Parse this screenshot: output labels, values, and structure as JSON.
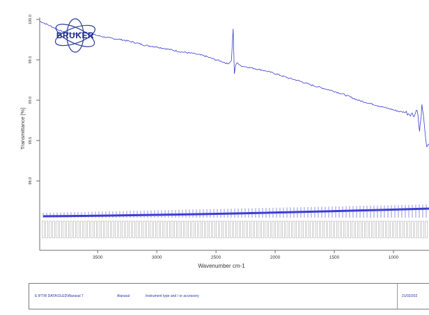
{
  "chart_data": {
    "type": "line",
    "title": "",
    "xlabel": "Wavenumber cm-1",
    "ylabel": "Transmittance [%]",
    "x_axis_reversed": true,
    "xlim": [
      3990,
      700
    ],
    "ylim": [
      97.7,
      100.0
    ],
    "x_ticks": [
      3500,
      3000,
      2500,
      2000,
      1500,
      1000
    ],
    "y_ticks": [
      100.0,
      99.5,
      99.0,
      98.5,
      98.0
    ],
    "y_tick_labels": [
      "100.0",
      "99.5",
      "99.0",
      "98.5",
      "98.0"
    ],
    "grid": false,
    "color": "#3b3bd4",
    "series": [
      {
        "x": [
          3990,
          3900,
          3800,
          3700,
          3600,
          3500,
          3400,
          3300,
          3200,
          3100,
          3000,
          2900,
          2800,
          2700,
          2600,
          2500,
          2450,
          2400,
          2370,
          2355,
          2345,
          2335,
          2320,
          2300,
          2200,
          2100,
          2000,
          1900,
          1800,
          1700,
          1600,
          1500,
          1400,
          1300,
          1200,
          1100,
          1000,
          950,
          900,
          850,
          820,
          800,
          780,
          760,
          740,
          720,
          700
        ],
        "y": [
          99.98,
          99.92,
          99.85,
          99.82,
          99.84,
          99.8,
          99.77,
          99.75,
          99.72,
          99.68,
          99.66,
          99.63,
          99.6,
          99.58,
          99.55,
          99.5,
          99.48,
          99.45,
          99.49,
          99.88,
          99.32,
          99.43,
          99.47,
          99.43,
          99.4,
          99.37,
          99.33,
          99.28,
          99.24,
          99.19,
          99.15,
          99.11,
          99.06,
          99.0,
          98.96,
          98.92,
          98.88,
          98.86,
          98.85,
          98.83,
          98.82,
          98.9,
          98.6,
          98.92,
          98.72,
          98.4,
          98.45
        ]
      }
    ]
  },
  "logo": {
    "text": "BRUKER"
  },
  "footer": {
    "path": "E:\\FTIR DATA\\OLED\\Alarasal 7",
    "field1": "Alarasal",
    "field2": "Instrument type and / or accessory",
    "date": "21/02/202"
  }
}
